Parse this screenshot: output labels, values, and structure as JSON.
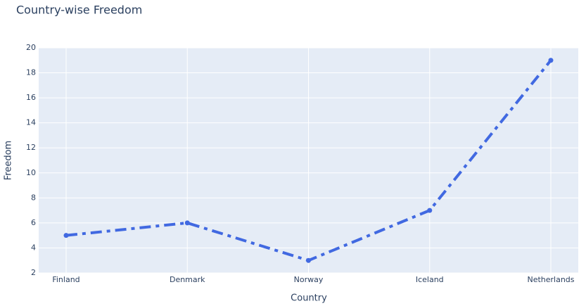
{
  "chart_data": {
    "type": "line",
    "title": "Country-wise Freedom",
    "x_label": "Country",
    "y_label": "Freedom",
    "categories": [
      "Finland",
      "Denmark",
      "Norway",
      "Iceland",
      "Netherlands"
    ],
    "values": [
      5,
      6,
      3,
      7,
      19
    ],
    "color": "#4169e1",
    "dash": "dashdot",
    "markers": true,
    "ylim": [
      2,
      20
    ],
    "yticks": [
      2,
      4,
      6,
      8,
      10,
      12,
      14,
      16,
      18,
      20
    ],
    "grid": true
  }
}
